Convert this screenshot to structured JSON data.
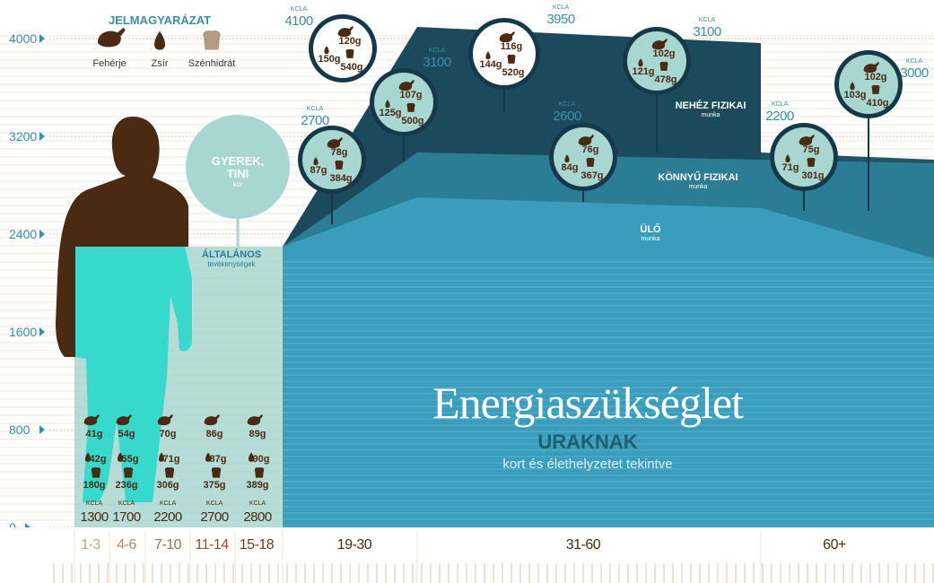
{
  "legend": {
    "title": "JELMAGYARÁZAT",
    "items": [
      {
        "label": "Fehérje",
        "icon": "chicken-icon"
      },
      {
        "label": "Zsír",
        "icon": "drop-icon"
      },
      {
        "label": "Szénhidrát",
        "icon": "bread-icon"
      }
    ]
  },
  "title": {
    "main": "Energiaszükséglet",
    "sub": "URAKNAK",
    "caption": "kort és élethelyzetet tekintve"
  },
  "bands": {
    "heavy": {
      "label": "NEHÉZ FIZIKAI",
      "sub": "munka"
    },
    "light": {
      "label": "KÖNNYŰ FIZIKAI",
      "sub": "munka"
    },
    "sit": {
      "label": "ÜLŐ",
      "sub": "munka"
    },
    "general": {
      "label": "ÁLTALÁNOS",
      "sub": "tevékenységek"
    },
    "teen": {
      "label1": "GYEREK,",
      "label2": "TINI",
      "sub": "kor"
    }
  },
  "unit": "KCLA",
  "gram": "g",
  "chart_data": {
    "type": "area",
    "title": "Energiaszükséglet",
    "ylim": [
      0,
      4000
    ],
    "yticks": [
      "0",
      "800",
      "1600",
      "2400",
      "3200",
      "4000"
    ],
    "age_groups": [
      "1-3",
      "4-6",
      "7-10",
      "11-14",
      "15-18",
      "19-30",
      "31-60",
      "60+"
    ],
    "children": [
      {
        "age": "1-3",
        "kcal": "1300",
        "protein": "41",
        "fat": "42",
        "carb": "180"
      },
      {
        "age": "4-6",
        "kcal": "1700",
        "protein": "54",
        "fat": "55",
        "carb": "236"
      },
      {
        "age": "7-10",
        "kcal": "2200",
        "protein": "70",
        "fat": "71",
        "carb": "306"
      },
      {
        "age": "11-14",
        "kcal": "2700",
        "protein": "86",
        "fat": "87",
        "carb": "375"
      },
      {
        "age": "15-18",
        "kcal": "2800",
        "protein": "89",
        "fat": "90",
        "carb": "389"
      }
    ],
    "adults": [
      {
        "age": "19-30",
        "work": "light",
        "kcal": "2700",
        "protein": "78",
        "fat": "87",
        "carb": "384"
      },
      {
        "age": "19-30",
        "work": "heavy",
        "kcal": "3100",
        "protein": "107",
        "fat": "125",
        "carb": "500"
      },
      {
        "age": "19-30",
        "work": "heavy",
        "kcal": "4100",
        "protein": "120",
        "fat": "150",
        "carb": "540"
      },
      {
        "age": "31-60",
        "work": "heavy",
        "kcal": "3950",
        "protein": "116",
        "fat": "144",
        "carb": "520"
      },
      {
        "age": "31-60",
        "work": "light",
        "kcal": "2600",
        "protein": "76",
        "fat": "84",
        "carb": "367"
      },
      {
        "age": "31-60",
        "work": "heavy",
        "kcal": "3100",
        "protein": "102",
        "fat": "121",
        "carb": "478"
      },
      {
        "age": "60+",
        "work": "light",
        "kcal": "2200",
        "protein": "75",
        "fat": "71",
        "carb": "301"
      },
      {
        "age": "60+",
        "work": "heavy",
        "kcal": "3000",
        "protein": "102",
        "fat": "103",
        "carb": "410"
      }
    ]
  },
  "colors": {
    "brown": "#4a2a12",
    "dark_teal": "#1b4a5c",
    "mid_teal": "#2a7d95",
    "light_teal": "#3a9dbb",
    "aqua": "#36d9cc",
    "pale_teal": "#a8d6d0",
    "axis_blue": "#3a8ea8",
    "title_white": "#ffffff"
  }
}
